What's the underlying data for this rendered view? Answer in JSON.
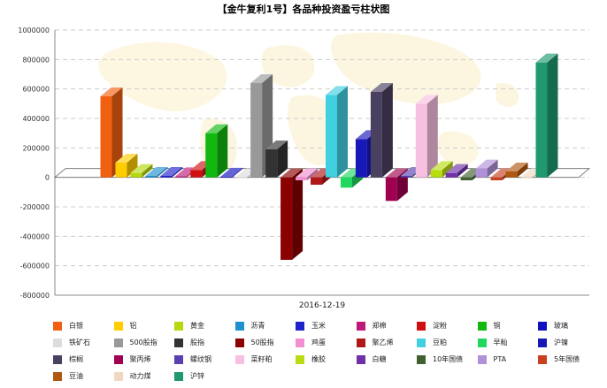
{
  "chart_data": {
    "type": "bar",
    "title": "【金牛复利1号】各品种投资盈亏柱状图",
    "xlabel": "2016-12-19",
    "ylabel": "",
    "ylim": [
      -800000,
      1000000
    ],
    "yticks": [
      1000000,
      800000,
      600000,
      400000,
      200000,
      0,
      -200000,
      -400000,
      -600000,
      -800000
    ],
    "ytick_labels": [
      "1000000",
      "800000",
      "600000",
      "400000",
      "200000",
      "0",
      "-200000",
      "-400000",
      "-600000",
      "-800000"
    ],
    "category": "2016-12-19",
    "grid": true,
    "legend_position": "bottom",
    "series": [
      {
        "name": "白银",
        "value": 550000,
        "color": "#F06010"
      },
      {
        "name": "铝",
        "value": 100000,
        "color": "#FFCC00"
      },
      {
        "name": "黄金",
        "value": 30000,
        "color": "#B5D80E"
      },
      {
        "name": "沥青",
        "value": 10000,
        "color": "#2090D0"
      },
      {
        "name": "玉米",
        "value": 10000,
        "color": "#2222CC"
      },
      {
        "name": "郑棉",
        "value": 8000,
        "color": "#C0187A"
      },
      {
        "name": "淀粉",
        "value": 50000,
        "color": "#D01010"
      },
      {
        "name": "铜",
        "value": 300000,
        "color": "#10B810"
      },
      {
        "name": "玻璃",
        "value": 5000,
        "color": "#1010C0"
      },
      {
        "name": "铁矿石",
        "value": 0,
        "color": "#DDDDDD"
      },
      {
        "name": "500股指",
        "value": 640000,
        "color": "#999999"
      },
      {
        "name": "股指",
        "value": 190000,
        "color": "#333333"
      },
      {
        "name": "50股指",
        "value": -560000,
        "color": "#8B0000"
      },
      {
        "name": "鸡蛋",
        "value": -20000,
        "color": "#F090D0"
      },
      {
        "name": "聚乙烯",
        "value": -50000,
        "color": "#B01818"
      },
      {
        "name": "豆粕",
        "value": 560000,
        "color": "#40D0E0"
      },
      {
        "name": "早籼",
        "value": -70000,
        "color": "#20D860"
      },
      {
        "name": "沪镍",
        "value": 260000,
        "color": "#1818B8"
      },
      {
        "name": "棕榈",
        "value": 580000,
        "color": "#4A4060"
      },
      {
        "name": "聚丙烯",
        "value": -160000,
        "color": "#A00050"
      },
      {
        "name": "螺纹钢",
        "value": 10000,
        "color": "#5840B0"
      },
      {
        "name": "菜籽粕",
        "value": 500000,
        "color": "#F8C0E0"
      },
      {
        "name": "橡胶",
        "value": 50000,
        "color": "#B8DC10"
      },
      {
        "name": "白糖",
        "value": 30000,
        "color": "#7030A8"
      },
      {
        "name": "10年国债",
        "value": -20000,
        "color": "#406030"
      },
      {
        "name": "PTA",
        "value": 60000,
        "color": "#B090D8"
      },
      {
        "name": "5年国债",
        "value": -20000,
        "color": "#C84020"
      },
      {
        "name": "豆油",
        "value": 40000,
        "color": "#B05810"
      },
      {
        "name": "动力煤",
        "value": 0,
        "color": "#F0D8C0"
      },
      {
        "name": "沪锌",
        "value": 780000,
        "color": "#209870"
      }
    ]
  }
}
